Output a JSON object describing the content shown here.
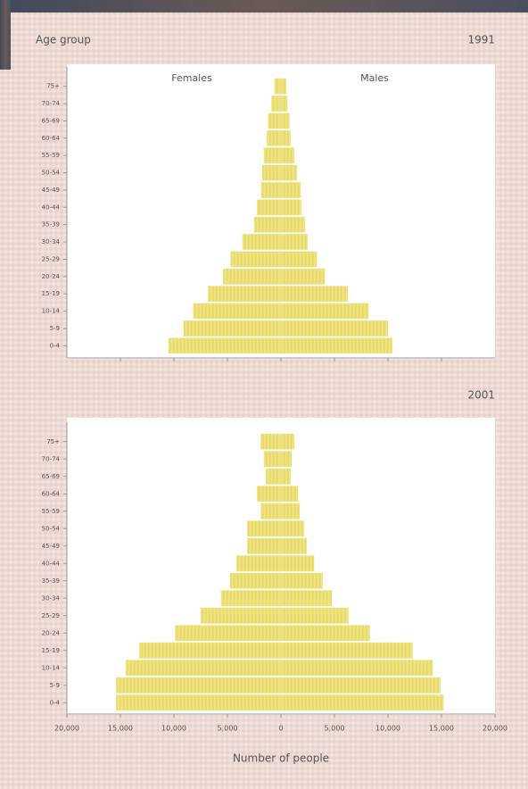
{
  "chart_data": [
    {
      "type": "pyramid",
      "title": "1991",
      "y_label": "Age group",
      "categories": [
        "75+",
        "70-74",
        "65-69",
        "60-64",
        "55-59",
        "50-54",
        "45-49",
        "40-44",
        "35-39",
        "30-34",
        "25-29",
        "20-24",
        "15-19",
        "10-14",
        "5-9",
        "0-4"
      ],
      "series": [
        {
          "name": "Females",
          "color": "#e9dc6c",
          "values": [
            -600,
            -900,
            -1200,
            -1300,
            -1600,
            -1750,
            -1850,
            -2250,
            -2500,
            -3600,
            -4700,
            -5400,
            -6800,
            -8200,
            -9100,
            -10500
          ]
        },
        {
          "name": "Males",
          "color": "#e9dc6c",
          "values": [
            500,
            600,
            800,
            900,
            1250,
            1500,
            1850,
            1900,
            2250,
            2500,
            3350,
            4100,
            6250,
            8200,
            10000,
            10400
          ]
        }
      ],
      "xlim": [
        -20000,
        20000
      ],
      "xticks": [
        -15000,
        -10000,
        -5000,
        0,
        5000,
        10000,
        15000
      ]
    },
    {
      "type": "pyramid",
      "title": "2001",
      "x_label": "Number of people",
      "categories": [
        "75+",
        "70-74",
        "65-69",
        "60-64",
        "55-59",
        "50-54",
        "45-49",
        "40-44",
        "35-39",
        "30-34",
        "25-29",
        "20-24",
        "15-19",
        "10-14",
        "5-9",
        "0-4"
      ],
      "series": [
        {
          "color": "#e9dc6c",
          "values": [
            -1900,
            -1600,
            -1400,
            -2250,
            -1900,
            -3150,
            -3150,
            -4150,
            -4750,
            -5600,
            -7500,
            -9900,
            -13250,
            -14500,
            -15400,
            -15400
          ]
        },
        {
          "color": "#e9dc6c",
          "values": [
            1250,
            1000,
            900,
            1600,
            1750,
            2150,
            2400,
            3100,
            3900,
            4750,
            6300,
            8300,
            12300,
            14200,
            14900,
            15200
          ]
        }
      ],
      "xlim": [
        -20000,
        20000
      ],
      "xticks": [
        {
          "value": -20000,
          "label": "20,000"
        },
        {
          "value": -15000,
          "label": "15,000"
        },
        {
          "value": -10000,
          "label": "10,000"
        },
        {
          "value": -5000,
          "label": "5,000"
        },
        0,
        {
          "value": 5000,
          "label": "5,000"
        },
        {
          "value": 10000,
          "label": "10,000"
        },
        {
          "value": 15000,
          "label": "15,000"
        },
        {
          "value": 20000,
          "label": "20,000"
        }
      ]
    }
  ]
}
